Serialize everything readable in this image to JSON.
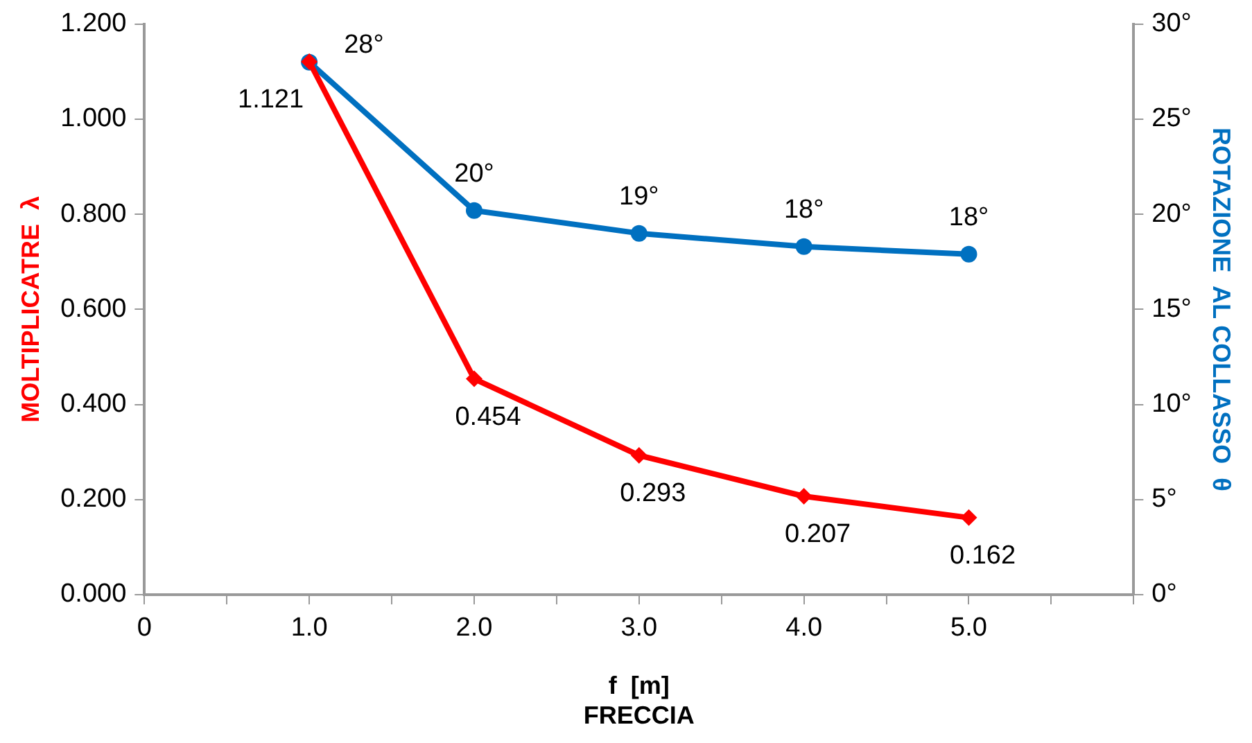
{
  "chart_data": {
    "type": "line",
    "xlabel": "f  [m]\nFRECCIA",
    "ylabel": "MOLTIPLICATRE  λ",
    "y2label": "ROTAZIONE  AL COLLASSO  θ",
    "xlim": [
      0,
      6
    ],
    "xticks": [
      {
        "value": 0,
        "label": "0"
      },
      {
        "value": 0.5,
        "label": null
      },
      {
        "value": 1,
        "label": "1.0"
      },
      {
        "value": 1.5,
        "label": null
      },
      {
        "value": 2,
        "label": "2.0"
      },
      {
        "value": 2.5,
        "label": null
      },
      {
        "value": 3,
        "label": "3.0"
      },
      {
        "value": 3.5,
        "label": null
      },
      {
        "value": 4,
        "label": "4.0"
      },
      {
        "value": 4.5,
        "label": null
      },
      {
        "value": 5,
        "label": "5.0"
      },
      {
        "value": 5.5,
        "label": null
      },
      {
        "value": 6,
        "label": null
      }
    ],
    "ylim": [
      0,
      1.2
    ],
    "yticks": [
      {
        "value": 0,
        "label": "0.000"
      },
      {
        "value": 0.2,
        "label": "0.200"
      },
      {
        "value": 0.4,
        "label": "0.400"
      },
      {
        "value": 0.6,
        "label": "0.600"
      },
      {
        "value": 0.8,
        "label": "0.800"
      },
      {
        "value": 1,
        "label": "1.000"
      },
      {
        "value": 1.2,
        "label": "1.200"
      }
    ],
    "y2lim": [
      0,
      30
    ],
    "y2ticks": [
      {
        "value": 0,
        "label": "0°"
      },
      {
        "value": 5,
        "label": "5°"
      },
      {
        "value": 10,
        "label": "10°"
      },
      {
        "value": 15,
        "label": "15°"
      },
      {
        "value": 20,
        "label": "20°"
      },
      {
        "value": 25,
        "label": "25°"
      },
      {
        "value": 30,
        "label": "30°"
      }
    ],
    "x": [
      1,
      2,
      3,
      4,
      5
    ],
    "grid": false,
    "legend": false,
    "line_style": "solid",
    "series": [
      {
        "color": "#ff0000",
        "marker": "diamond",
        "values": [
          1.121,
          0.454,
          0.293,
          0.207,
          0.162
        ],
        "value_labels": [
          "1.121",
          "0.454",
          "0.293",
          "0.207",
          "0.162"
        ]
      },
      {
        "color": "#0070c0",
        "marker": "circle",
        "axis": "y2",
        "values": [
          28,
          20.2,
          19,
          18.3,
          17.9
        ],
        "value_labels": [
          "28°",
          "20°",
          "19°",
          "18°",
          "18°"
        ]
      }
    ]
  }
}
